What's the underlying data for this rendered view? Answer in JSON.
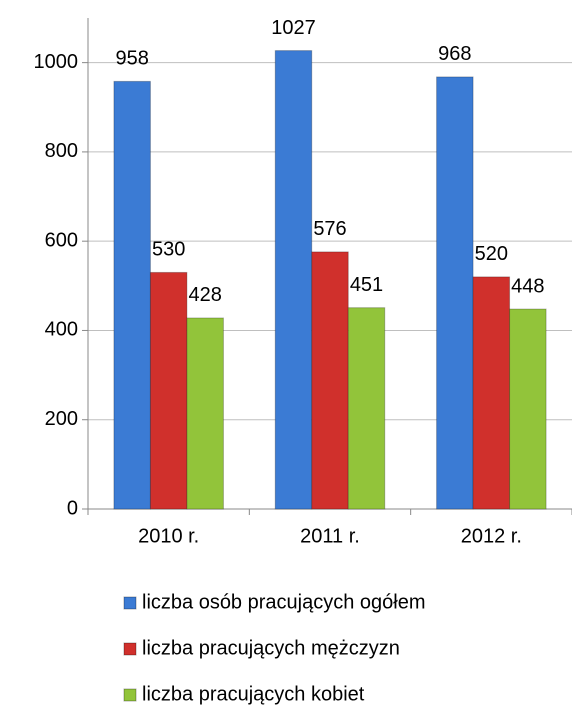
{
  "chart_data": {
    "type": "bar",
    "categories": [
      "2010 r.",
      "2011 r.",
      "2012 r."
    ],
    "series": [
      {
        "name": "liczba osób pracujących ogółem",
        "color": "#3b7bd4",
        "values": [
          958,
          1027,
          968
        ]
      },
      {
        "name": "liczba pracujących mężczyzn",
        "color": "#d0302c",
        "values": [
          530,
          576,
          520
        ]
      },
      {
        "name": "liczba pracujących kobiet",
        "color": "#92c43a",
        "values": [
          428,
          451,
          448
        ]
      }
    ],
    "ylim": [
      0,
      1100
    ],
    "yticks": [
      0,
      200,
      400,
      600,
      800,
      1000
    ],
    "grid": true
  }
}
